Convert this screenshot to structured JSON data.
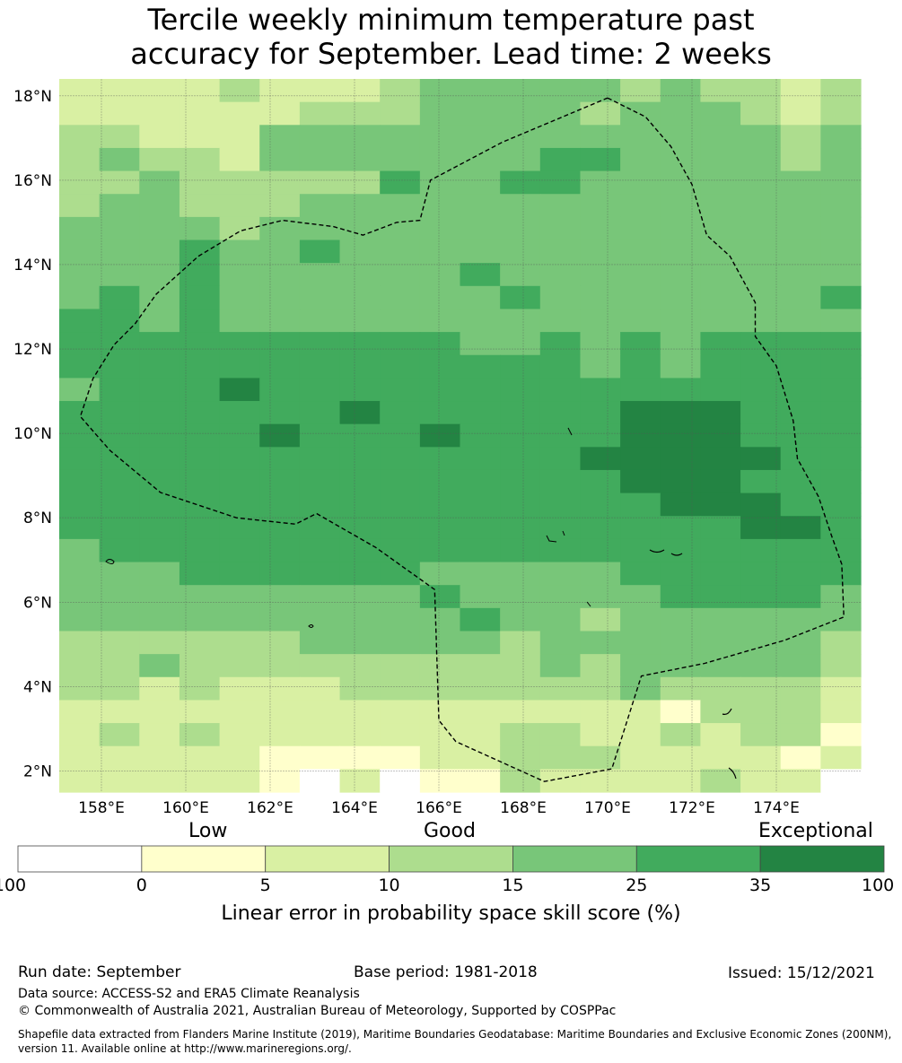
{
  "title": {
    "line1": "Tercile weekly minimum temperature past",
    "line2": "accuracy for September. Lead time: 2 weeks"
  },
  "map": {
    "lon_range": [
      157.0,
      176.0
    ],
    "lat_range": [
      1.5,
      18.4
    ],
    "x_ticks": [
      {
        "value": 158,
        "label": "158°E"
      },
      {
        "value": 160,
        "label": "160°E"
      },
      {
        "value": 162,
        "label": "162°E"
      },
      {
        "value": 164,
        "label": "164°E"
      },
      {
        "value": 166,
        "label": "166°E"
      },
      {
        "value": 168,
        "label": "168°E"
      },
      {
        "value": 170,
        "label": "170°E"
      },
      {
        "value": 172,
        "label": "172°E"
      },
      {
        "value": 174,
        "label": "174°E"
      }
    ],
    "y_ticks": [
      {
        "value": 2,
        "label": "2°N"
      },
      {
        "value": 4,
        "label": "4°N"
      },
      {
        "value": 6,
        "label": "6°N"
      },
      {
        "value": 8,
        "label": "8°N"
      },
      {
        "value": 10,
        "label": "10°N"
      },
      {
        "value": 12,
        "label": "12°N"
      },
      {
        "value": 14,
        "label": "14°N"
      },
      {
        "value": 16,
        "label": "16°N"
      },
      {
        "value": 18,
        "label": "18°N"
      }
    ],
    "grid_note": "grid rows listed north to south (18N to 2N), columns west to east (157E to 176E); values are skill-score category indices 0-6",
    "grid_rows": [
      "22223222344444343323",
      "22222233344443444323",
      "33222444444444444434",
      "34332444444455444434",
      "33433333544554444444",
      "34433344444444444444",
      "44443444444444444444",
      "44454454444444444444",
      "44454444445444444444",
      "45454444444544444445",
      "55454444444444444444",
      "55555555554454545555",
      "55555555555554545555",
      "45556555555555555555",
      "55555556555555666555",
      "55555655565555666555",
      "55555555555556666655",
      "55555555555555666555",
      "55555555555555566655",
      "55555555555555555665",
      "45555555555555555555",
      "44455555544444555555",
      "44444444454444455554",
      "44444444445443444444",
      "33333344444344444443",
      "33433333333343444443",
      "33232223333333433332",
      "22222222222222213332",
      "23232222222332232331",
      "22222111122333222212",
      "22222102011322223220"
    ],
    "eez_boundary_note": "dashed EEZ boundary (lon, lat pairs)",
    "eez_boundary": [
      [
        170.0,
        17.95
      ],
      [
        170.9,
        17.5
      ],
      [
        171.5,
        16.8
      ],
      [
        172.0,
        15.9
      ],
      [
        172.35,
        14.7
      ],
      [
        172.9,
        14.2
      ],
      [
        173.5,
        13.1
      ],
      [
        173.5,
        12.3
      ],
      [
        174.0,
        11.6
      ],
      [
        174.4,
        10.3
      ],
      [
        174.5,
        9.4
      ],
      [
        175.0,
        8.5
      ],
      [
        175.3,
        7.6
      ],
      [
        175.55,
        6.9
      ],
      [
        175.6,
        5.65
      ],
      [
        174.2,
        5.1
      ],
      [
        172.3,
        4.55
      ],
      [
        170.8,
        4.25
      ],
      [
        170.1,
        2.05
      ],
      [
        168.5,
        1.75
      ],
      [
        166.4,
        2.7
      ],
      [
        166.0,
        3.2
      ],
      [
        165.9,
        6.3
      ],
      [
        164.5,
        7.3
      ],
      [
        163.1,
        8.1
      ],
      [
        162.6,
        7.85
      ],
      [
        161.2,
        8.0
      ],
      [
        159.4,
        8.6
      ],
      [
        158.2,
        9.6
      ],
      [
        157.5,
        10.4
      ],
      [
        157.8,
        11.3
      ],
      [
        158.3,
        12.1
      ],
      [
        158.8,
        12.6
      ],
      [
        159.3,
        13.3
      ],
      [
        160.3,
        14.2
      ],
      [
        161.3,
        14.8
      ],
      [
        162.3,
        15.05
      ],
      [
        163.5,
        14.9
      ],
      [
        164.2,
        14.7
      ],
      [
        165.0,
        15.0
      ],
      [
        165.55,
        15.05
      ],
      [
        165.8,
        16.0
      ],
      [
        167.5,
        16.9
      ],
      [
        170.0,
        17.95
      ]
    ]
  },
  "colorbar": {
    "colors": [
      "#ffffff",
      "#ffffcc",
      "#d9f0a3",
      "#addd8e",
      "#78c679",
      "#41ab5d",
      "#238443"
    ],
    "boundaries": [
      "-100",
      "0",
      "5",
      "10",
      "15",
      "25",
      "35",
      "100"
    ],
    "category_labels": [
      "Low",
      "Good",
      "Exceptional"
    ],
    "axis_label": "Linear error in probability space skill score (%)"
  },
  "footer": {
    "run_date": "Run date: September",
    "base_period": "Base period: 1981-2018",
    "issued": "Issued: 15/12/2021",
    "data_source": "Data source: ACCESS-S2 and ERA5 Climate Reanalysis",
    "copyright": "© Commonwealth of Australia 2021, Australian Bureau of Meteorology, Supported by COSPPac",
    "shapefile_note": "Shapefile data extracted from Flanders Marine Institute (2019), Maritime Boundaries Geodatabase: Maritime Boundaries and Exclusive Economic Zones (200NM), version 11. Available online at http://www.marineregions.org/."
  }
}
